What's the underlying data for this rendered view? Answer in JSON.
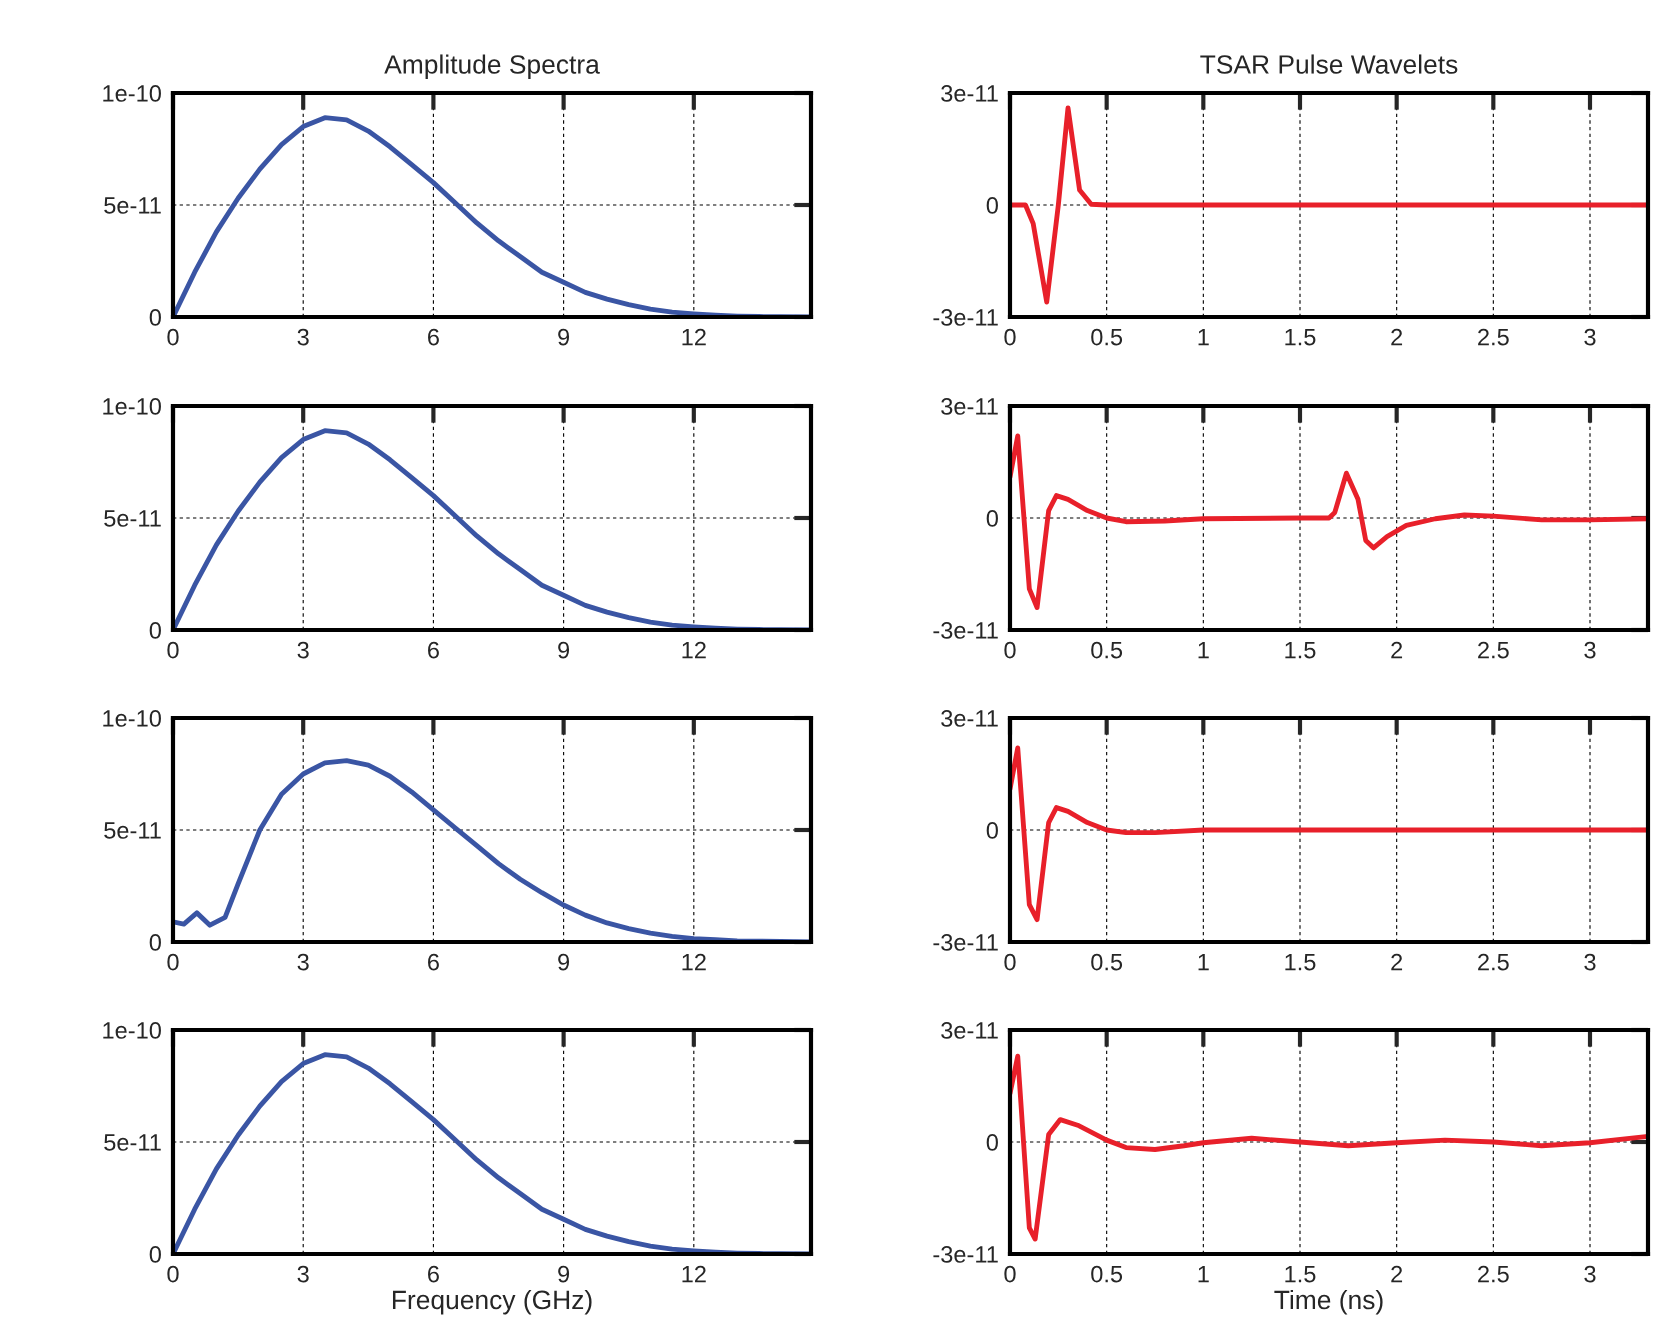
{
  "chart_data": [
    {
      "type": "line",
      "title": "Amplitude Spectra",
      "xlim": [
        0,
        14.7
      ],
      "ylim": [
        0,
        1e-10
      ],
      "xticks": [
        0,
        3,
        6,
        9,
        12
      ],
      "yticks": [
        0,
        5e-11,
        1e-10
      ],
      "grid": true,
      "line_style": "solid",
      "x": [
        0,
        0.5,
        1,
        1.5,
        2,
        2.5,
        3,
        3.5,
        4,
        4.5,
        5,
        5.5,
        6,
        6.5,
        7,
        7.5,
        8,
        8.5,
        9,
        9.5,
        10,
        10.5,
        11,
        11.5,
        12,
        12.5,
        13,
        13.5,
        14,
        14.7
      ],
      "series": [
        {
          "color": "#3a55a4",
          "values": [
            0,
            2e-11,
            3.8e-11,
            5.3e-11,
            6.6e-11,
            7.7e-11,
            8.5e-11,
            8.9e-11,
            8.8e-11,
            8.3e-11,
            7.6e-11,
            6.8e-11,
            6e-11,
            5.1e-11,
            4.2e-11,
            3.4e-11,
            2.7e-11,
            2e-11,
            1.55e-11,
            1.1e-11,
            8e-12,
            5.5e-12,
            3.5e-12,
            2.2e-12,
            1.4e-12,
            8e-13,
            4e-13,
            2e-13,
            1e-13,
            0
          ]
        }
      ]
    },
    {
      "type": "line",
      "title": "TSAR Pulse Wavelets",
      "xlim": [
        0,
        3.3
      ],
      "ylim": [
        -3e-11,
        3e-11
      ],
      "xticks": [
        0,
        0.5,
        1,
        1.5,
        2,
        2.5,
        3
      ],
      "yticks": [
        -3e-11,
        0,
        3e-11
      ],
      "grid": true,
      "line_style": "solid",
      "x": [
        0,
        0.08,
        0.12,
        0.19,
        0.25,
        0.3,
        0.36,
        0.42,
        0.5,
        1,
        2,
        3,
        3.3
      ],
      "series": [
        {
          "color": "#e8202a",
          "values": [
            0,
            0,
            -5e-12,
            -2.6e-11,
            0,
            2.6e-11,
            4e-12,
            2e-13,
            0,
            0,
            0,
            0,
            0
          ]
        }
      ]
    },
    {
      "type": "line",
      "xlim": [
        0,
        14.7
      ],
      "ylim": [
        0,
        1e-10
      ],
      "xticks": [
        0,
        3,
        6,
        9,
        12
      ],
      "yticks": [
        0,
        5e-11,
        1e-10
      ],
      "grid": true,
      "line_style": "solid",
      "x": [
        0,
        0.5,
        1,
        1.5,
        2,
        2.5,
        3,
        3.5,
        4,
        4.5,
        5,
        5.5,
        6,
        6.5,
        7,
        7.5,
        8,
        8.5,
        9,
        9.5,
        10,
        10.5,
        11,
        11.5,
        12,
        12.5,
        13,
        13.5,
        14,
        14.7
      ],
      "series": [
        {
          "color": "#3a55a4",
          "values": [
            0,
            2e-11,
            3.8e-11,
            5.3e-11,
            6.6e-11,
            7.7e-11,
            8.5e-11,
            8.9e-11,
            8.8e-11,
            8.3e-11,
            7.6e-11,
            6.8e-11,
            6e-11,
            5.1e-11,
            4.2e-11,
            3.4e-11,
            2.7e-11,
            2e-11,
            1.55e-11,
            1.1e-11,
            8e-12,
            5.5e-12,
            3.5e-12,
            2.2e-12,
            1.4e-12,
            8e-13,
            4e-13,
            2e-13,
            1e-13,
            0
          ]
        }
      ]
    },
    {
      "type": "line",
      "xlim": [
        0,
        3.3
      ],
      "ylim": [
        -3e-11,
        3e-11
      ],
      "xticks": [
        0,
        0.5,
        1,
        1.5,
        2,
        2.5,
        3
      ],
      "yticks": [
        -3e-11,
        0,
        3e-11
      ],
      "grid": true,
      "line_style": "solid",
      "x": [
        0,
        0.04,
        0.1,
        0.14,
        0.2,
        0.24,
        0.3,
        0.4,
        0.5,
        0.6,
        0.8,
        1.0,
        1.5,
        1.65,
        1.68,
        1.74,
        1.8,
        1.84,
        1.88,
        1.95,
        2.05,
        2.2,
        2.35,
        2.5,
        2.75,
        3.0,
        3.3
      ],
      "series": [
        {
          "color": "#e8202a",
          "values": [
            1.1e-11,
            2.2e-11,
            -1.9e-11,
            -2.4e-11,
            2e-12,
            6e-12,
            5e-12,
            2e-12,
            0,
            -1e-12,
            -8e-13,
            -2e-13,
            0,
            0,
            1.5e-12,
            1.2e-11,
            5e-12,
            -6e-12,
            -8e-12,
            -5e-12,
            -2e-12,
            -2e-13,
            8e-13,
            5e-13,
            -5e-13,
            -5e-13,
            -2e-13
          ]
        }
      ]
    },
    {
      "type": "line",
      "xlim": [
        0,
        14.7
      ],
      "ylim": [
        0,
        1e-10
      ],
      "xticks": [
        0,
        3,
        6,
        9,
        12
      ],
      "yticks": [
        0,
        5e-11,
        1e-10
      ],
      "grid": true,
      "line_style": "solid",
      "x": [
        0,
        0.25,
        0.55,
        0.85,
        1.2,
        1.5,
        2,
        2.5,
        3,
        3.5,
        4,
        4.5,
        5,
        5.5,
        6,
        6.5,
        7,
        7.5,
        8,
        8.5,
        9,
        9.5,
        10,
        10.5,
        11,
        11.5,
        12,
        12.5,
        13,
        14,
        14.7
      ],
      "series": [
        {
          "color": "#3a55a4",
          "values": [
            9e-12,
            8e-12,
            1.3e-11,
            7.5e-12,
            1.1e-11,
            2.6e-11,
            5e-11,
            6.6e-11,
            7.5e-11,
            8e-11,
            8.1e-11,
            7.9e-11,
            7.4e-11,
            6.7e-11,
            5.9e-11,
            5.1e-11,
            4.3e-11,
            3.5e-11,
            2.8e-11,
            2.2e-11,
            1.65e-11,
            1.2e-11,
            8.5e-12,
            6e-12,
            4e-12,
            2.5e-12,
            1.5e-12,
            1e-12,
            5e-13,
            2e-13,
            0
          ]
        }
      ]
    },
    {
      "type": "line",
      "xlim": [
        0,
        3.3
      ],
      "ylim": [
        -3e-11,
        3e-11
      ],
      "xticks": [
        0,
        0.5,
        1,
        1.5,
        2,
        2.5,
        3
      ],
      "yticks": [
        -3e-11,
        0,
        3e-11
      ],
      "grid": true,
      "line_style": "solid",
      "x": [
        0,
        0.04,
        0.1,
        0.14,
        0.2,
        0.24,
        0.3,
        0.4,
        0.5,
        0.6,
        0.75,
        1.0,
        3.3
      ],
      "series": [
        {
          "color": "#e8202a",
          "values": [
            1.1e-11,
            2.2e-11,
            -2e-11,
            -2.4e-11,
            2e-12,
            6e-12,
            5e-12,
            2e-12,
            0,
            -7e-13,
            -7e-13,
            0,
            0
          ]
        }
      ]
    },
    {
      "type": "line",
      "xlabel": "Frequency (GHz)",
      "xlim": [
        0,
        14.7
      ],
      "ylim": [
        0,
        1e-10
      ],
      "xticks": [
        0,
        3,
        6,
        9,
        12
      ],
      "yticks": [
        0,
        5e-11,
        1e-10
      ],
      "grid": true,
      "line_style": "solid",
      "x": [
        0,
        0.5,
        1,
        1.5,
        2,
        2.5,
        3,
        3.5,
        4,
        4.5,
        5,
        5.5,
        6,
        6.5,
        7,
        7.5,
        8,
        8.5,
        9,
        9.5,
        10,
        10.5,
        11,
        11.5,
        12,
        12.5,
        13,
        13.5,
        14,
        14.7
      ],
      "series": [
        {
          "color": "#3a55a4",
          "values": [
            0,
            2e-11,
            3.8e-11,
            5.3e-11,
            6.6e-11,
            7.7e-11,
            8.5e-11,
            8.9e-11,
            8.8e-11,
            8.3e-11,
            7.6e-11,
            6.8e-11,
            6e-11,
            5.1e-11,
            4.2e-11,
            3.4e-11,
            2.7e-11,
            2e-11,
            1.55e-11,
            1.1e-11,
            8e-12,
            5.5e-12,
            3.5e-12,
            2.2e-12,
            1.4e-12,
            8e-13,
            4e-13,
            2e-13,
            1e-13,
            0
          ]
        }
      ]
    },
    {
      "type": "line",
      "xlabel": "Time (ns)",
      "xlim": [
        0,
        3.3
      ],
      "ylim": [
        -3e-11,
        3e-11
      ],
      "xticks": [
        0,
        0.5,
        1,
        1.5,
        2,
        2.5,
        3
      ],
      "yticks": [
        -3e-11,
        0,
        3e-11
      ],
      "grid": true,
      "line_style": "solid",
      "x": [
        0,
        0.04,
        0.1,
        0.13,
        0.2,
        0.26,
        0.35,
        0.5,
        0.6,
        0.75,
        0.9,
        1.0,
        1.25,
        1.5,
        1.75,
        2.0,
        2.25,
        2.5,
        2.75,
        3.0,
        3.3
      ],
      "series": [
        {
          "color": "#e8202a",
          "values": [
            1.3e-11,
            2.3e-11,
            -2.3e-11,
            -2.6e-11,
            2e-12,
            6e-12,
            4.5e-12,
            5e-13,
            -1.5e-12,
            -2e-12,
            -1e-12,
            -2e-13,
            1e-12,
            0,
            -1e-12,
            -2e-13,
            5e-13,
            0,
            -1e-12,
            -2e-13,
            1.5e-12
          ]
        }
      ]
    }
  ]
}
